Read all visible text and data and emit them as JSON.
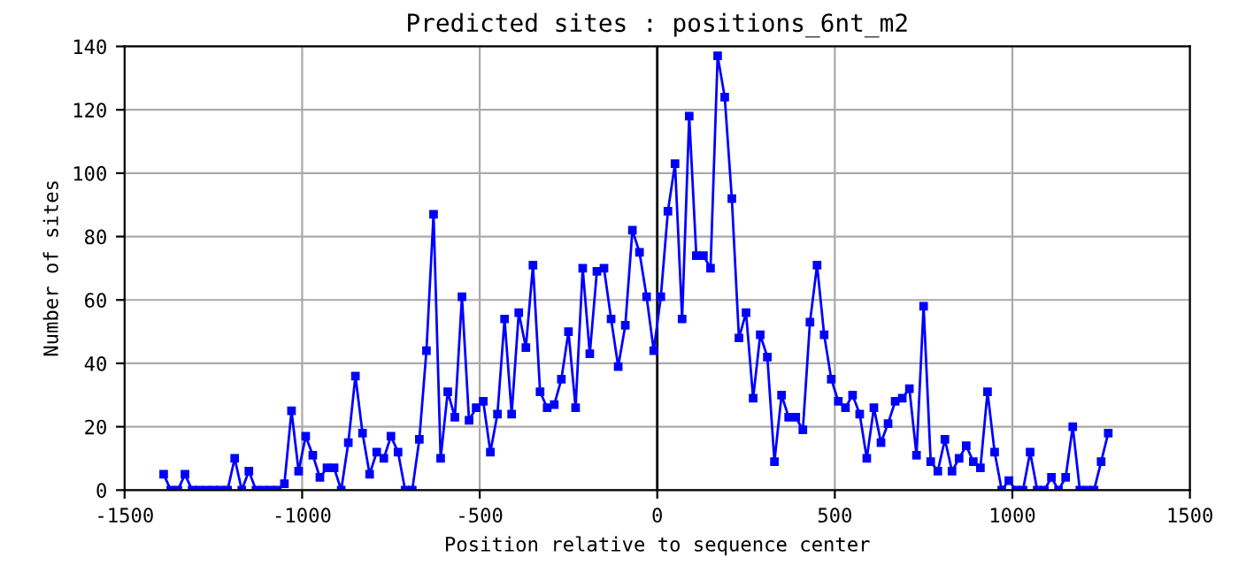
{
  "chart_data": {
    "type": "line",
    "title": "Predicted sites : positions_6nt_m2",
    "xlabel": "Position relative to sequence center",
    "ylabel": "Number of sites",
    "x": [
      -1390,
      -1370,
      -1350,
      -1330,
      -1310,
      -1290,
      -1270,
      -1250,
      -1230,
      -1210,
      -1190,
      -1170,
      -1150,
      -1130,
      -1110,
      -1090,
      -1070,
      -1050,
      -1030,
      -1010,
      -990,
      -970,
      -950,
      -930,
      -910,
      -890,
      -870,
      -850,
      -830,
      -810,
      -790,
      -770,
      -750,
      -730,
      -710,
      -690,
      -670,
      -650,
      -630,
      -610,
      -590,
      -570,
      -550,
      -530,
      -510,
      -490,
      -470,
      -450,
      -430,
      -410,
      -390,
      -370,
      -350,
      -330,
      -310,
      -290,
      -270,
      -250,
      -230,
      -210,
      -190,
      -170,
      -150,
      -130,
      -110,
      -90,
      -70,
      -50,
      -30,
      -10,
      10,
      30,
      50,
      70,
      90,
      110,
      130,
      150,
      170,
      190,
      210,
      230,
      250,
      270,
      290,
      310,
      330,
      350,
      370,
      390,
      410,
      430,
      450,
      470,
      490,
      510,
      530,
      550,
      570,
      590,
      610,
      630,
      650,
      670,
      690,
      710,
      730,
      750,
      770,
      790,
      810,
      830,
      850,
      870,
      890,
      910,
      930,
      950,
      970,
      990,
      1010,
      1030,
      1050,
      1070,
      1090,
      1110,
      1130,
      1150,
      1170,
      1190,
      1210,
      1230,
      1250,
      1270
    ],
    "series": [
      {
        "color": "#0000ff",
        "values": [
          5,
          0,
          0,
          5,
          0,
          0,
          0,
          0,
          0,
          0,
          10,
          0,
          6,
          0,
          0,
          0,
          0,
          2,
          25,
          6,
          17,
          11,
          4,
          7,
          7,
          0,
          15,
          36,
          18,
          5,
          12,
          10,
          17,
          12,
          0,
          0,
          16,
          44,
          87,
          10,
          31,
          23,
          61,
          22,
          26,
          28,
          12,
          24,
          54,
          24,
          56,
          45,
          71,
          31,
          26,
          27,
          35,
          50,
          26,
          70,
          43,
          69,
          70,
          54,
          39,
          52,
          82,
          75,
          61,
          44,
          61,
          88,
          103,
          54,
          118,
          74,
          74,
          70,
          137,
          124,
          92,
          48,
          56,
          29,
          49,
          42,
          9,
          30,
          23,
          23,
          19,
          53,
          71,
          49,
          35,
          28,
          26,
          30,
          24,
          10,
          26,
          15,
          21,
          28,
          29,
          32,
          11,
          58,
          9,
          6,
          16,
          6,
          10,
          14,
          9,
          7,
          31,
          12,
          0,
          3,
          0,
          0,
          12,
          0,
          0,
          4,
          0,
          4,
          20,
          0,
          0,
          0,
          9,
          18
        ]
      }
    ],
    "xlim": [
      -1500,
      1500
    ],
    "xticks": [
      -1500,
      -1000,
      -500,
      0,
      500,
      1000,
      1500
    ],
    "ylim": [
      0,
      140
    ],
    "yticks": [
      0,
      20,
      40,
      60,
      80,
      100,
      120,
      140
    ],
    "ref_lines": [
      {
        "axis": "x",
        "value": 0,
        "color": "#000000"
      }
    ],
    "grid": true,
    "marker": "square",
    "line_style": "solid",
    "legend": false
  }
}
